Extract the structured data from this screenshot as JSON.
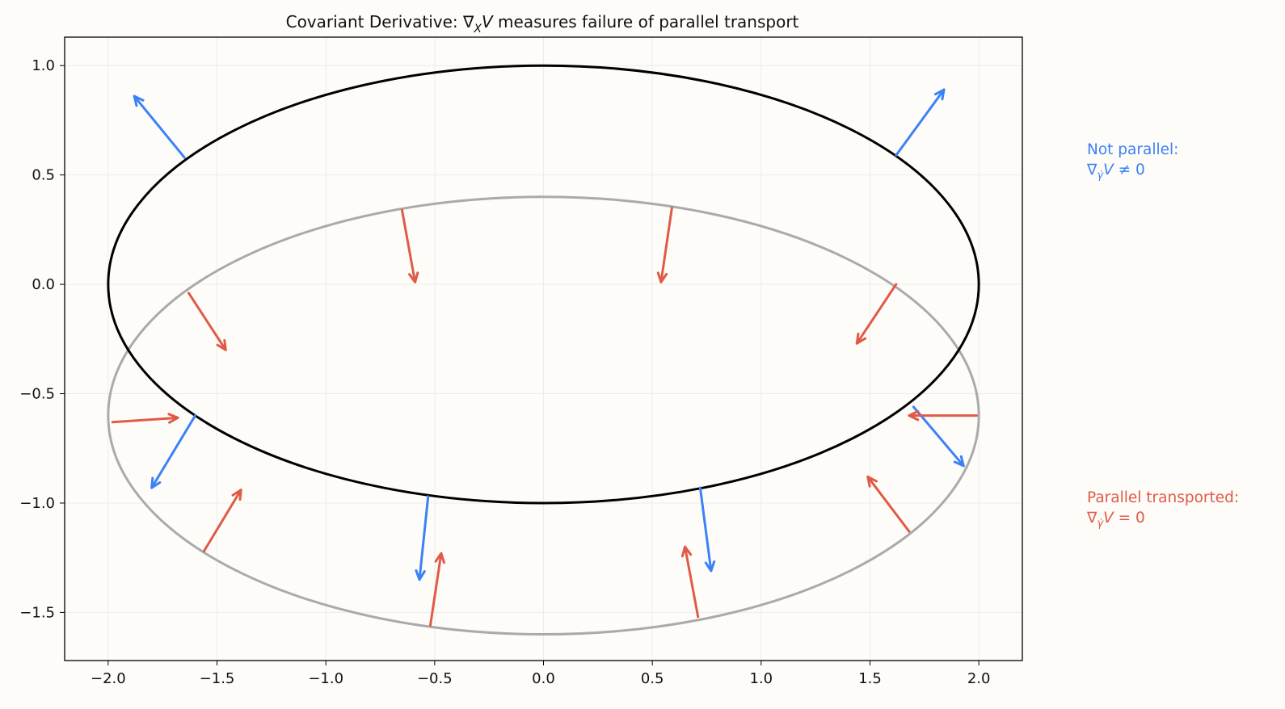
{
  "chart_data": {
    "type": "scatter",
    "title_prefix": "Covariant Derivative: ∇",
    "title_sub": "X",
    "title_italic": "V",
    "title_suffix": " measures failure of parallel transport",
    "xlim": [
      -2.2,
      2.2
    ],
    "ylim": [
      -1.72,
      1.13
    ],
    "xticks": [
      -2.0,
      -1.5,
      -1.0,
      -0.5,
      0.0,
      0.5,
      1.0,
      1.5,
      2.0
    ],
    "xtick_labels": [
      "−2.0",
      "−1.5",
      "−1.0",
      "−0.5",
      "0.0",
      "0.5",
      "1.0",
      "1.5",
      "2.0"
    ],
    "yticks": [
      1.0,
      0.5,
      0.0,
      -0.5,
      -1.0,
      -1.5
    ],
    "ytick_labels": [
      "1.0",
      "0.5",
      "0.0",
      "−0.5",
      "−1.0",
      "−1.5"
    ],
    "grid": true,
    "colors": {
      "background": "#fdfcf9",
      "black_curve": "#000000",
      "gray_curve": "#aaaaaa",
      "not_parallel": "#3b82f6",
      "parallel": "#e05a47",
      "grid": "#ececec"
    },
    "curves": [
      {
        "name": "black-ellipse",
        "cx": 0.0,
        "cy": 0.0,
        "rx": 2.0,
        "ry": 1.0,
        "color": "#000000"
      },
      {
        "name": "gray-ellipse",
        "cx": 0.0,
        "cy": -0.6,
        "rx": 2.0,
        "ry": 1.0,
        "color": "#aaaaaa"
      }
    ],
    "arrows_not_parallel": [
      {
        "x": 1.62,
        "y": 0.59,
        "dx": 0.22,
        "dy": 0.3
      },
      {
        "x": -1.65,
        "y": 0.58,
        "dx": -0.23,
        "dy": 0.28
      },
      {
        "x": -1.6,
        "y": -0.6,
        "dx": -0.2,
        "dy": -0.33
      },
      {
        "x": 1.7,
        "y": -0.56,
        "dx": 0.23,
        "dy": -0.27
      },
      {
        "x": -0.53,
        "y": -0.97,
        "dx": -0.04,
        "dy": -0.38
      },
      {
        "x": 0.72,
        "y": -0.93,
        "dx": 0.05,
        "dy": -0.38
      }
    ],
    "arrows_parallel": [
      {
        "x": -0.65,
        "y": 0.34,
        "dx": 0.06,
        "dy": -0.33
      },
      {
        "x": 0.59,
        "y": 0.35,
        "dx": -0.05,
        "dy": -0.34
      },
      {
        "x": 1.62,
        "y": 0.0,
        "dx": -0.18,
        "dy": -0.27
      },
      {
        "x": -1.63,
        "y": -0.04,
        "dx": 0.17,
        "dy": -0.26
      },
      {
        "x": 1.99,
        "y": -0.6,
        "dx": -0.31,
        "dy": 0.0
      },
      {
        "x": -1.98,
        "y": -0.63,
        "dx": 0.3,
        "dy": 0.02
      },
      {
        "x": -1.56,
        "y": -1.22,
        "dx": 0.17,
        "dy": 0.28
      },
      {
        "x": 1.68,
        "y": -1.13,
        "dx": -0.19,
        "dy": 0.25
      },
      {
        "x": -0.52,
        "y": -1.56,
        "dx": 0.05,
        "dy": 0.33
      },
      {
        "x": 0.71,
        "y": -1.52,
        "dx": -0.06,
        "dy": 0.32
      }
    ],
    "annotations": {
      "not_parallel_line1": "Not parallel:",
      "not_parallel_nabla": "∇",
      "not_parallel_sub": "γ̇",
      "not_parallel_V": "V",
      "not_parallel_rel": " ≠ 0",
      "parallel_line1": "Parallel transported:",
      "parallel_nabla": "∇",
      "parallel_sub": "γ̇",
      "parallel_V": "V",
      "parallel_rel": " = 0"
    }
  }
}
